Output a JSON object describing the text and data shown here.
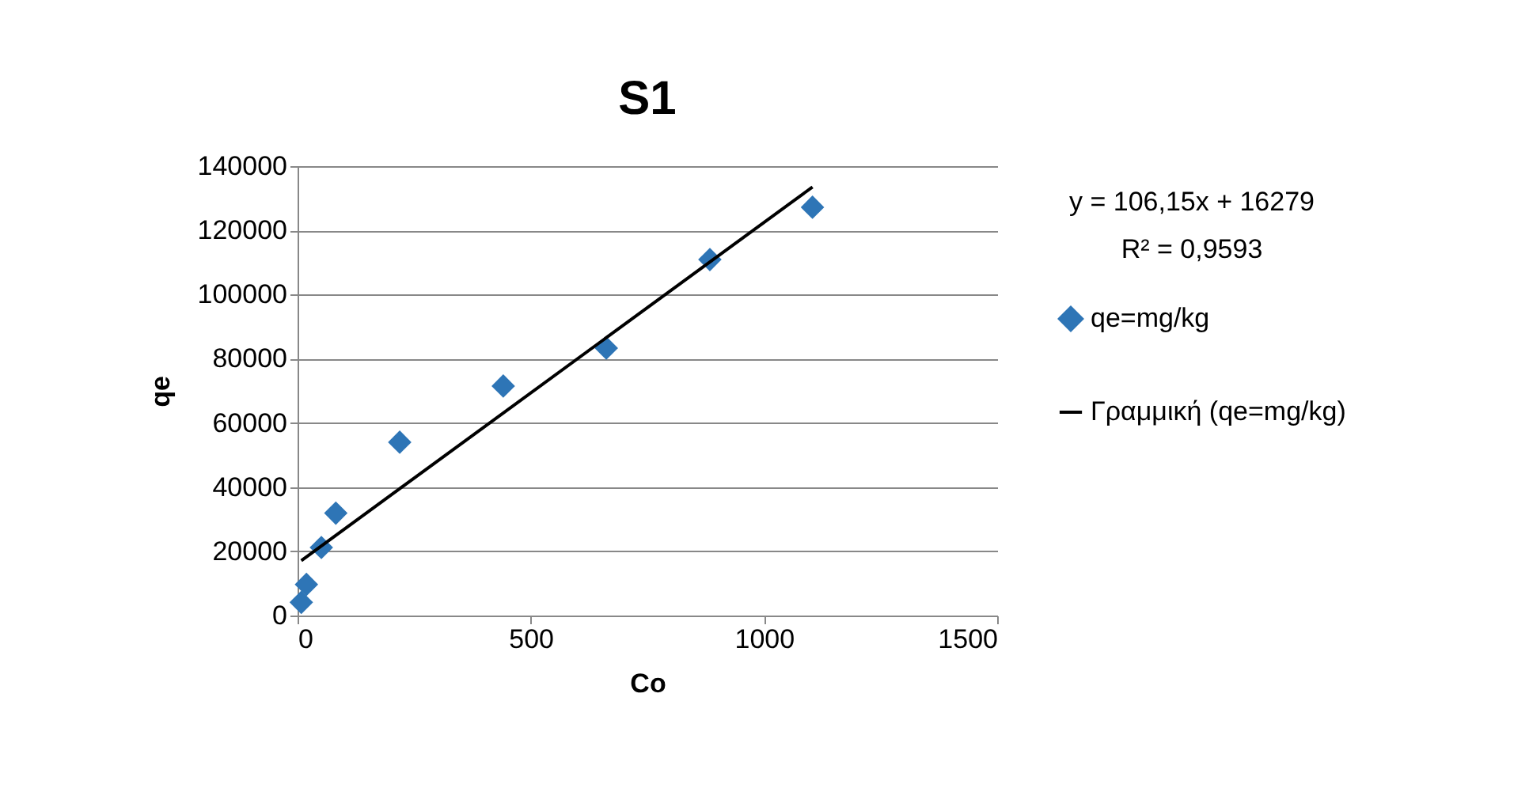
{
  "chart_data": {
    "type": "scatter",
    "title": "S1",
    "xlabel": "Co",
    "ylabel": "qe",
    "annotations": [
      "y = 106,15x + 16279",
      "R² = 0,9593"
    ],
    "xlim": [
      0,
      1500
    ],
    "xticks": [
      0,
      500,
      1000,
      1500
    ],
    "ylim": [
      0,
      140000
    ],
    "yticks": [
      0,
      20000,
      40000,
      60000,
      80000,
      100000,
      120000,
      140000
    ],
    "grid": "y",
    "legend": "right",
    "series": [
      {
        "name": "qe=mg/kg",
        "color": "#2e75b6",
        "marker": "diamond",
        "x": [
          8,
          19,
          51,
          82,
          219,
          441,
          662,
          884,
          1104
        ],
        "values": [
          4100,
          9700,
          21200,
          31900,
          54000,
          71500,
          83300,
          110900,
          127200
        ]
      },
      {
        "type": "line",
        "name": "Γραμμική (qe=mg/kg)",
        "color": "#000000",
        "x": [
          8,
          1104
        ],
        "values": [
          17100,
          133500
        ]
      }
    ]
  }
}
